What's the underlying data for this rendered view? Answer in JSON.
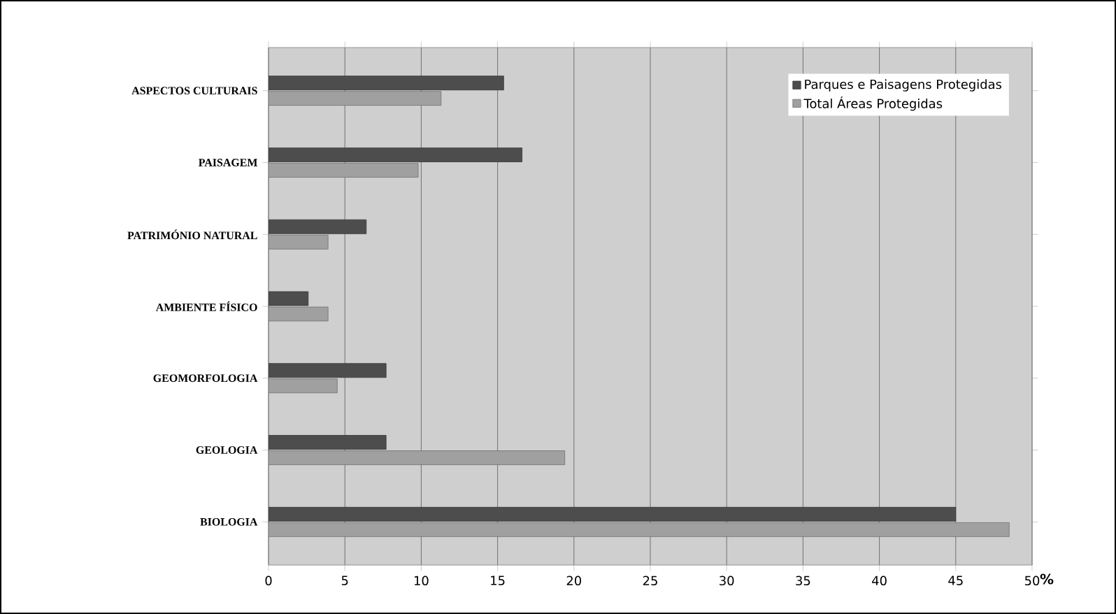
{
  "chart_data": {
    "type": "bar",
    "orientation": "horizontal",
    "xlabel": "%",
    "categories": [
      "ASPECTOS CULTURAIS",
      "PAISAGEM",
      "PATRIMÓNIO NATURAL",
      "AMBIENTE FÍSICO",
      "GEOMORFOLOGIA",
      "GEOLOGIA",
      "BIOLOGIA"
    ],
    "series": [
      {
        "name": "Parques e Paisagens Protegidas",
        "color": "#4d4d4d",
        "values": [
          15.4,
          16.6,
          6.4,
          2.6,
          7.7,
          7.7,
          45
        ]
      },
      {
        "name": "Total Áreas Protegidas",
        "color": "#a0a0a0",
        "values": [
          11.3,
          9.8,
          3.9,
          3.9,
          4.5,
          19.4,
          48.5
        ]
      }
    ],
    "xlim": [
      0,
      50
    ],
    "xticks": [
      0,
      5,
      10,
      15,
      20,
      25,
      30,
      35,
      40,
      45,
      50
    ],
    "grid": "x",
    "legend": "top right"
  }
}
